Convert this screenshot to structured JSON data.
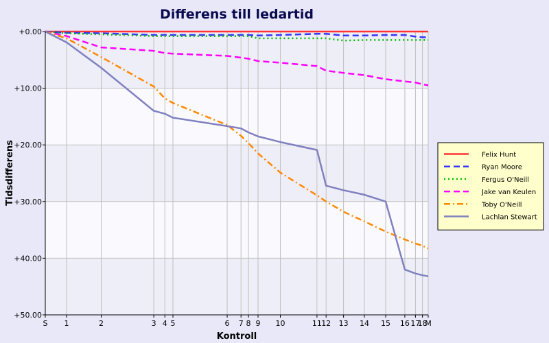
{
  "chart_data": {
    "type": "line",
    "title": "Differens till ledartid",
    "xlabel": "Kontroll",
    "ylabel": "Tidsdifferens",
    "x_ticks": [
      "S",
      "1",
      "2",
      "3",
      "4",
      "5",
      "6",
      "7",
      "8",
      "9",
      "10",
      "11",
      "12",
      "13",
      "14",
      "15",
      "16",
      "17",
      "18",
      "M"
    ],
    "x_positions": [
      0,
      1.0,
      2.63,
      5.1,
      5.62,
      6.0,
      8.55,
      9.2,
      9.55,
      10.0,
      11.05,
      12.77,
      13.2,
      14.02,
      15.0,
      16.0,
      16.9,
      17.4,
      17.73,
      18.0
    ],
    "y_ticks": [
      "+0.00",
      "+10.00",
      "+20.00",
      "+30.00",
      "+40.00",
      "+50.00"
    ],
    "ylim": [
      0,
      50
    ],
    "y_inverted": true,
    "grid": true,
    "legend_position": "right",
    "series": [
      {
        "name": "Felix Hunt",
        "color": "#ff3333",
        "dash": "solid",
        "values": [
          0,
          0,
          0,
          0,
          0,
          0,
          0,
          0,
          0,
          0,
          0,
          0,
          0,
          0,
          0,
          0,
          0,
          0,
          0,
          0
        ]
      },
      {
        "name": "Ryan Moore",
        "color": "#3333ff",
        "dash": "dashed",
        "values": [
          0,
          0.2,
          0.3,
          0.6,
          0.6,
          0.6,
          0.6,
          0.6,
          0.6,
          0.7,
          0.6,
          0.4,
          0.4,
          0.7,
          0.7,
          0.6,
          0.6,
          0.9,
          1.0,
          1.0
        ]
      },
      {
        "name": "Fergus O'Neill",
        "color": "#00bb00",
        "dash": "dotted",
        "values": [
          0,
          0.3,
          0.5,
          0.8,
          0.8,
          0.8,
          0.8,
          0.8,
          0.8,
          1.2,
          1.2,
          1.2,
          1.2,
          1.6,
          1.5,
          1.5,
          1.5,
          1.5,
          1.5,
          1.5
        ]
      },
      {
        "name": "Jake van Keulen",
        "color": "#ff00ff",
        "dash": "dashed",
        "values": [
          0,
          0.8,
          2.8,
          3.4,
          3.8,
          3.9,
          4.3,
          4.6,
          4.8,
          5.2,
          5.5,
          6.1,
          6.9,
          7.3,
          7.7,
          8.4,
          8.8,
          9.0,
          9.3,
          9.5
        ]
      },
      {
        "name": "Toby O'Neill",
        "color": "#ff8800",
        "dash": "dashdot",
        "values": [
          0,
          1.2,
          4.5,
          9.7,
          11.8,
          12.6,
          16.5,
          18.4,
          19.7,
          21.5,
          24.9,
          28.9,
          30.0,
          31.8,
          33.5,
          35.3,
          36.7,
          37.4,
          37.8,
          38.3
        ]
      },
      {
        "name": "Lachlan Stewart",
        "color": "#8080c0",
        "dash": "solid",
        "values": [
          0,
          1.9,
          6.4,
          14.0,
          14.5,
          15.2,
          16.7,
          17.1,
          17.8,
          18.5,
          19.5,
          20.9,
          27.2,
          28.0,
          28.8,
          30.0,
          42.0,
          42.7,
          43.0,
          43.2
        ]
      }
    ]
  }
}
